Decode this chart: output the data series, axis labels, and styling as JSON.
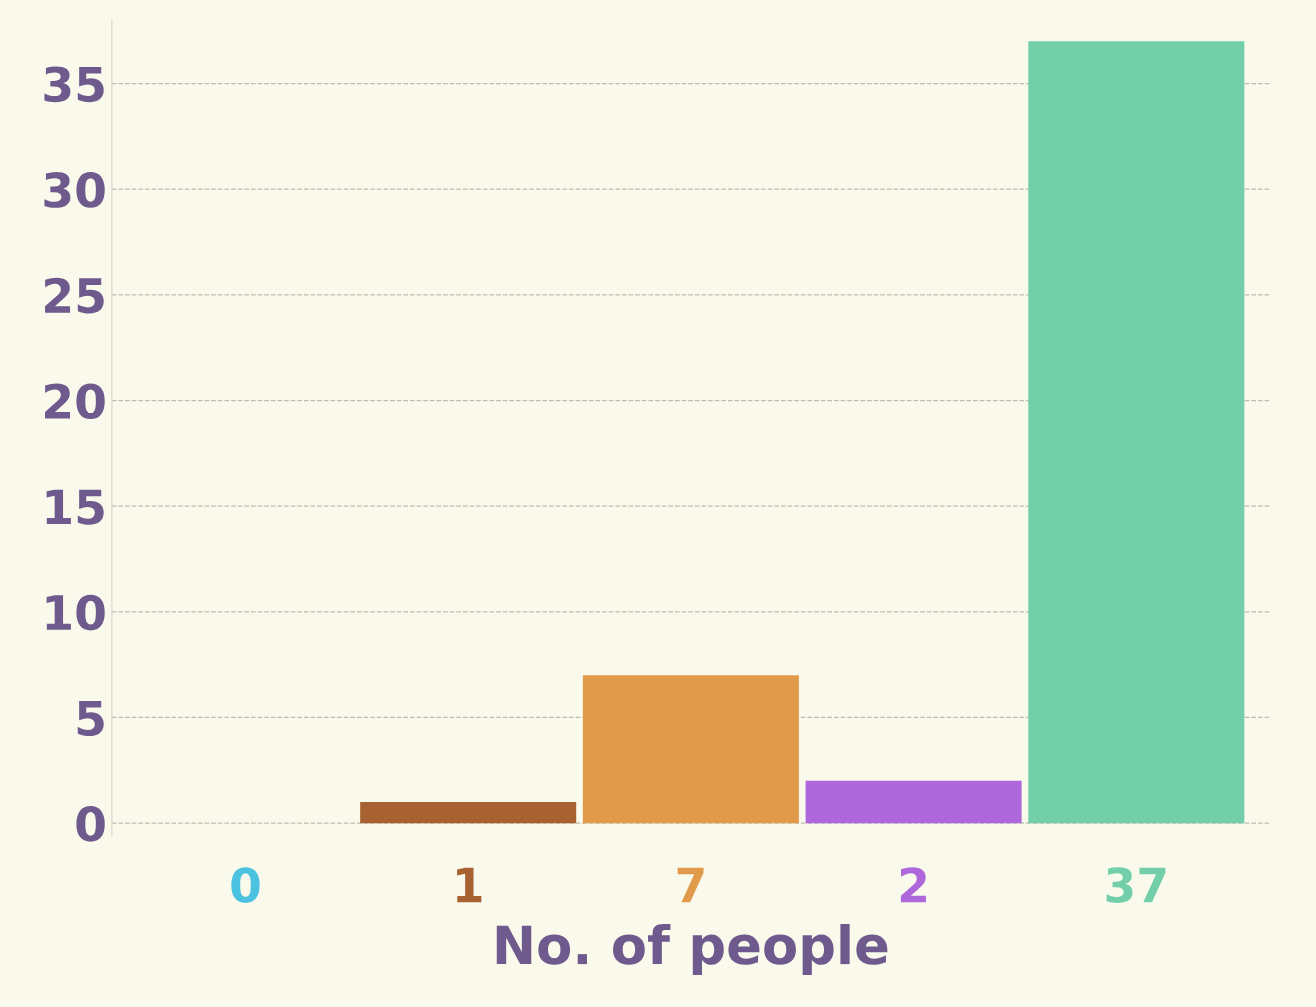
{
  "chart_data": {
    "type": "bar",
    "xlabel": "No. of people",
    "categories": [
      null,
      null,
      null,
      null,
      null
    ],
    "values": [
      0,
      1,
      7,
      2,
      37
    ],
    "colors": [
      "#4bc3e0",
      "#a86232",
      "#e09a4a",
      "#ae68db",
      "#72cfa9"
    ],
    "data_labels": true,
    "ylim": [
      -0.6,
      38
    ],
    "yticks": [
      0,
      5,
      10,
      15,
      20,
      25,
      30,
      35
    ],
    "grid": "y"
  }
}
